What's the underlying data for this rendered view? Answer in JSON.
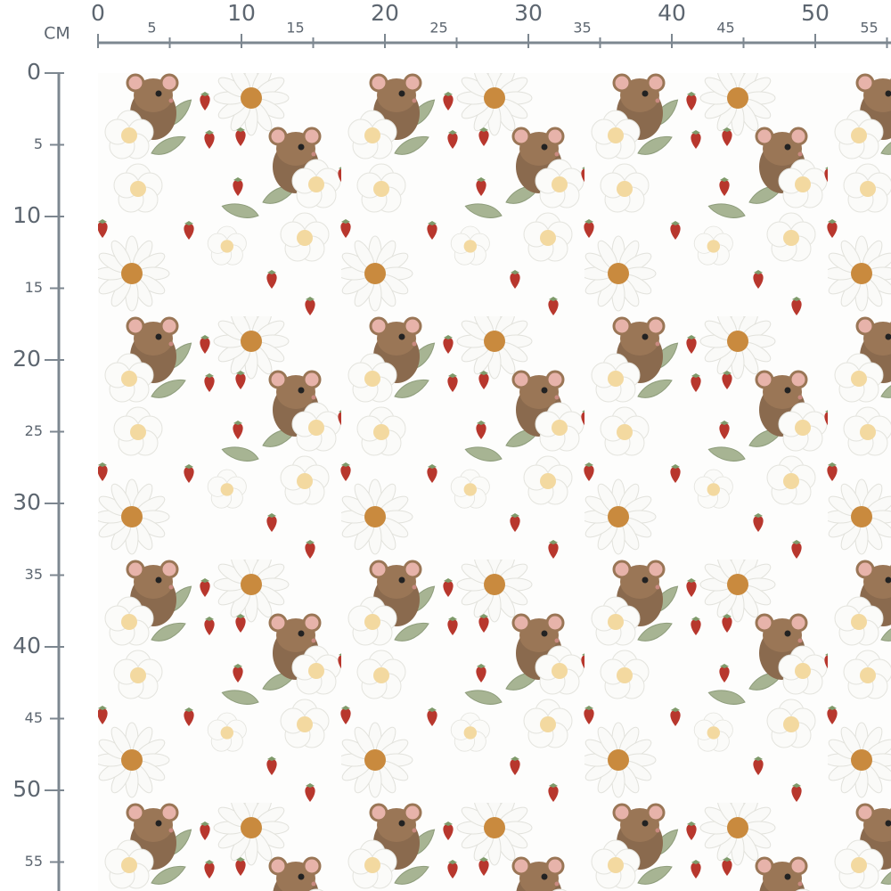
{
  "ruler": {
    "unit": "CM",
    "top_ticks": [
      0,
      5,
      10,
      15,
      20,
      25,
      30,
      35,
      40,
      45,
      50,
      55
    ],
    "left_ticks": [
      0,
      5,
      10,
      15,
      20,
      25,
      30,
      35,
      40,
      45,
      50,
      55
    ]
  }
}
